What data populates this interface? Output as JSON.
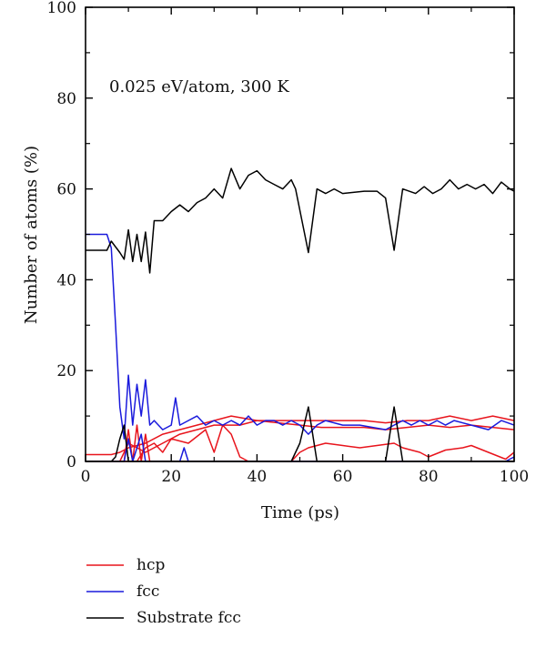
{
  "chart_data": {
    "type": "line",
    "title": "",
    "annotation": "0.025 eV/atom, 300 K",
    "xlabel": "Time (ps)",
    "ylabel": "Number of atoms (%)",
    "xlim": [
      0,
      100
    ],
    "ylim": [
      0,
      100
    ],
    "xticks": [
      "0",
      "20",
      "40",
      "60",
      "80",
      "100"
    ],
    "yticks": [
      "0",
      "20",
      "40",
      "60",
      "80",
      "100"
    ],
    "grid": false,
    "legend_placement": "below",
    "legend": [
      {
        "name": "hcp",
        "color": "#e8141c"
      },
      {
        "name": "fcc",
        "color": "#1a1adc"
      },
      {
        "name": "Substrate fcc",
        "color": "#000000"
      }
    ],
    "series": [
      {
        "name": "hcp",
        "color": "#e8141c",
        "points": [
          [
            0,
            1.5
          ],
          [
            6,
            1.5
          ],
          [
            8,
            2
          ],
          [
            10,
            3
          ],
          [
            14,
            4
          ],
          [
            18,
            6
          ],
          [
            22,
            7
          ],
          [
            26,
            8
          ],
          [
            30,
            9
          ],
          [
            34,
            10
          ],
          [
            40,
            9
          ],
          [
            46,
            9
          ],
          [
            50,
            9
          ],
          [
            55,
            9
          ],
          [
            60,
            9
          ],
          [
            65,
            9
          ],
          [
            70,
            8.5
          ],
          [
            75,
            9
          ],
          [
            80,
            9
          ],
          [
            85,
            10
          ],
          [
            90,
            9
          ],
          [
            95,
            10
          ],
          [
            100,
            9
          ]
        ]
      },
      {
        "name": "hcp",
        "color": "#e8141c",
        "points": [
          [
            0,
            0
          ],
          [
            8,
            0
          ],
          [
            10,
            4
          ],
          [
            14,
            2
          ],
          [
            18,
            4
          ],
          [
            22,
            6
          ],
          [
            26,
            7
          ],
          [
            30,
            8
          ],
          [
            36,
            8
          ],
          [
            40,
            9
          ],
          [
            50,
            8
          ],
          [
            55,
            7.5
          ],
          [
            60,
            7.5
          ],
          [
            65,
            7.5
          ],
          [
            70,
            7
          ],
          [
            75,
            7.5
          ],
          [
            80,
            8
          ],
          [
            85,
            7.5
          ],
          [
            90,
            8
          ],
          [
            95,
            7.5
          ],
          [
            100,
            7
          ]
        ]
      },
      {
        "name": "hcp",
        "color": "#e8141c",
        "points": [
          [
            0,
            0
          ],
          [
            12,
            0
          ],
          [
            14,
            3
          ],
          [
            16,
            4
          ],
          [
            18,
            2
          ],
          [
            20,
            5
          ],
          [
            24,
            4
          ],
          [
            28,
            7
          ],
          [
            30,
            2
          ],
          [
            32,
            8
          ],
          [
            34,
            6
          ],
          [
            36,
            1
          ],
          [
            38,
            0
          ],
          [
            48,
            0
          ],
          [
            50,
            2
          ],
          [
            52,
            3
          ],
          [
            56,
            4
          ],
          [
            60,
            3.5
          ],
          [
            64,
            3
          ],
          [
            68,
            3.5
          ],
          [
            72,
            4
          ],
          [
            74,
            3
          ],
          [
            78,
            2
          ],
          [
            80,
            1
          ],
          [
            84,
            2.5
          ],
          [
            88,
            3
          ],
          [
            90,
            3.5
          ],
          [
            94,
            2
          ],
          [
            98,
            0.5
          ],
          [
            100,
            2
          ]
        ]
      },
      {
        "name": "hcp",
        "color": "#e8141c",
        "points": [
          [
            0,
            0
          ],
          [
            9,
            0
          ],
          [
            10,
            7
          ],
          [
            11,
            0
          ],
          [
            12,
            8
          ],
          [
            13,
            0
          ],
          [
            14,
            6
          ],
          [
            15,
            0
          ],
          [
            100,
            0
          ]
        ]
      },
      {
        "name": "fcc",
        "color": "#1a1adc",
        "points": [
          [
            0,
            50
          ],
          [
            5,
            50
          ],
          [
            6,
            47
          ],
          [
            7,
            30
          ],
          [
            8,
            12
          ],
          [
            9,
            5
          ],
          [
            10,
            19
          ],
          [
            11,
            8
          ],
          [
            12,
            17
          ],
          [
            13,
            10
          ],
          [
            14,
            18
          ],
          [
            15,
            8
          ],
          [
            16,
            9
          ],
          [
            18,
            7
          ],
          [
            20,
            8
          ],
          [
            21,
            14
          ],
          [
            22,
            8
          ],
          [
            24,
            9
          ],
          [
            26,
            10
          ],
          [
            28,
            8
          ],
          [
            30,
            9
          ],
          [
            32,
            8
          ],
          [
            34,
            9
          ],
          [
            36,
            8
          ],
          [
            38,
            10
          ],
          [
            40,
            8
          ],
          [
            42,
            9
          ],
          [
            44,
            9
          ],
          [
            46,
            8
          ],
          [
            48,
            9
          ],
          [
            50,
            8
          ],
          [
            52,
            6
          ],
          [
            54,
            8
          ],
          [
            56,
            9
          ],
          [
            60,
            8
          ],
          [
            64,
            8
          ],
          [
            70,
            7
          ],
          [
            72,
            8
          ],
          [
            74,
            9
          ],
          [
            76,
            8
          ],
          [
            78,
            9
          ],
          [
            80,
            8
          ],
          [
            82,
            9
          ],
          [
            84,
            8
          ],
          [
            86,
            9
          ],
          [
            90,
            8
          ],
          [
            94,
            7
          ],
          [
            97,
            9
          ],
          [
            100,
            8
          ]
        ]
      },
      {
        "name": "fcc",
        "color": "#1a1adc",
        "points": [
          [
            0,
            0
          ],
          [
            9,
            0
          ],
          [
            10,
            5
          ],
          [
            11,
            0
          ],
          [
            13,
            6
          ],
          [
            14,
            0
          ],
          [
            22,
            0
          ],
          [
            23,
            3
          ],
          [
            24,
            0
          ],
          [
            98,
            0
          ],
          [
            100,
            1
          ]
        ]
      },
      {
        "name": "Substrate fcc",
        "color": "#000000",
        "points": [
          [
            0,
            46.5
          ],
          [
            5,
            46.5
          ],
          [
            6,
            48.5
          ],
          [
            8,
            46
          ],
          [
            9,
            44.5
          ],
          [
            10,
            51
          ],
          [
            11,
            44
          ],
          [
            12,
            50
          ],
          [
            13,
            44
          ],
          [
            14,
            50.5
          ],
          [
            15,
            41.5
          ],
          [
            16,
            53
          ],
          [
            18,
            53
          ],
          [
            20,
            55
          ],
          [
            22,
            56.5
          ],
          [
            24,
            55
          ],
          [
            26,
            57
          ],
          [
            28,
            58
          ],
          [
            30,
            60
          ],
          [
            32,
            58
          ],
          [
            34,
            64.5
          ],
          [
            36,
            60
          ],
          [
            38,
            63
          ],
          [
            40,
            64
          ],
          [
            42,
            62
          ],
          [
            44,
            61
          ],
          [
            46,
            60
          ],
          [
            48,
            62
          ],
          [
            49,
            60
          ],
          [
            52,
            46
          ],
          [
            54,
            60
          ],
          [
            56,
            59
          ],
          [
            58,
            60
          ],
          [
            60,
            59
          ],
          [
            65,
            59.5
          ],
          [
            68,
            59.5
          ],
          [
            70,
            58
          ],
          [
            72,
            46.5
          ],
          [
            74,
            60
          ],
          [
            77,
            59
          ],
          [
            79,
            60.5
          ],
          [
            81,
            59
          ],
          [
            83,
            60
          ],
          [
            85,
            62
          ],
          [
            87,
            60
          ],
          [
            89,
            61
          ],
          [
            91,
            60
          ],
          [
            93,
            61
          ],
          [
            95,
            59
          ],
          [
            97,
            61.5
          ],
          [
            99,
            60
          ],
          [
            100,
            59.5
          ]
        ]
      },
      {
        "name": "Substrate fcc",
        "color": "#000000",
        "points": [
          [
            0,
            0
          ],
          [
            6,
            0
          ],
          [
            7,
            1
          ],
          [
            8,
            5
          ],
          [
            9,
            8
          ],
          [
            10,
            0
          ],
          [
            48,
            0
          ],
          [
            50,
            4
          ],
          [
            52,
            12
          ],
          [
            54,
            0
          ],
          [
            70,
            0
          ],
          [
            72,
            12
          ],
          [
            74,
            0
          ],
          [
            100,
            0
          ]
        ]
      }
    ]
  }
}
